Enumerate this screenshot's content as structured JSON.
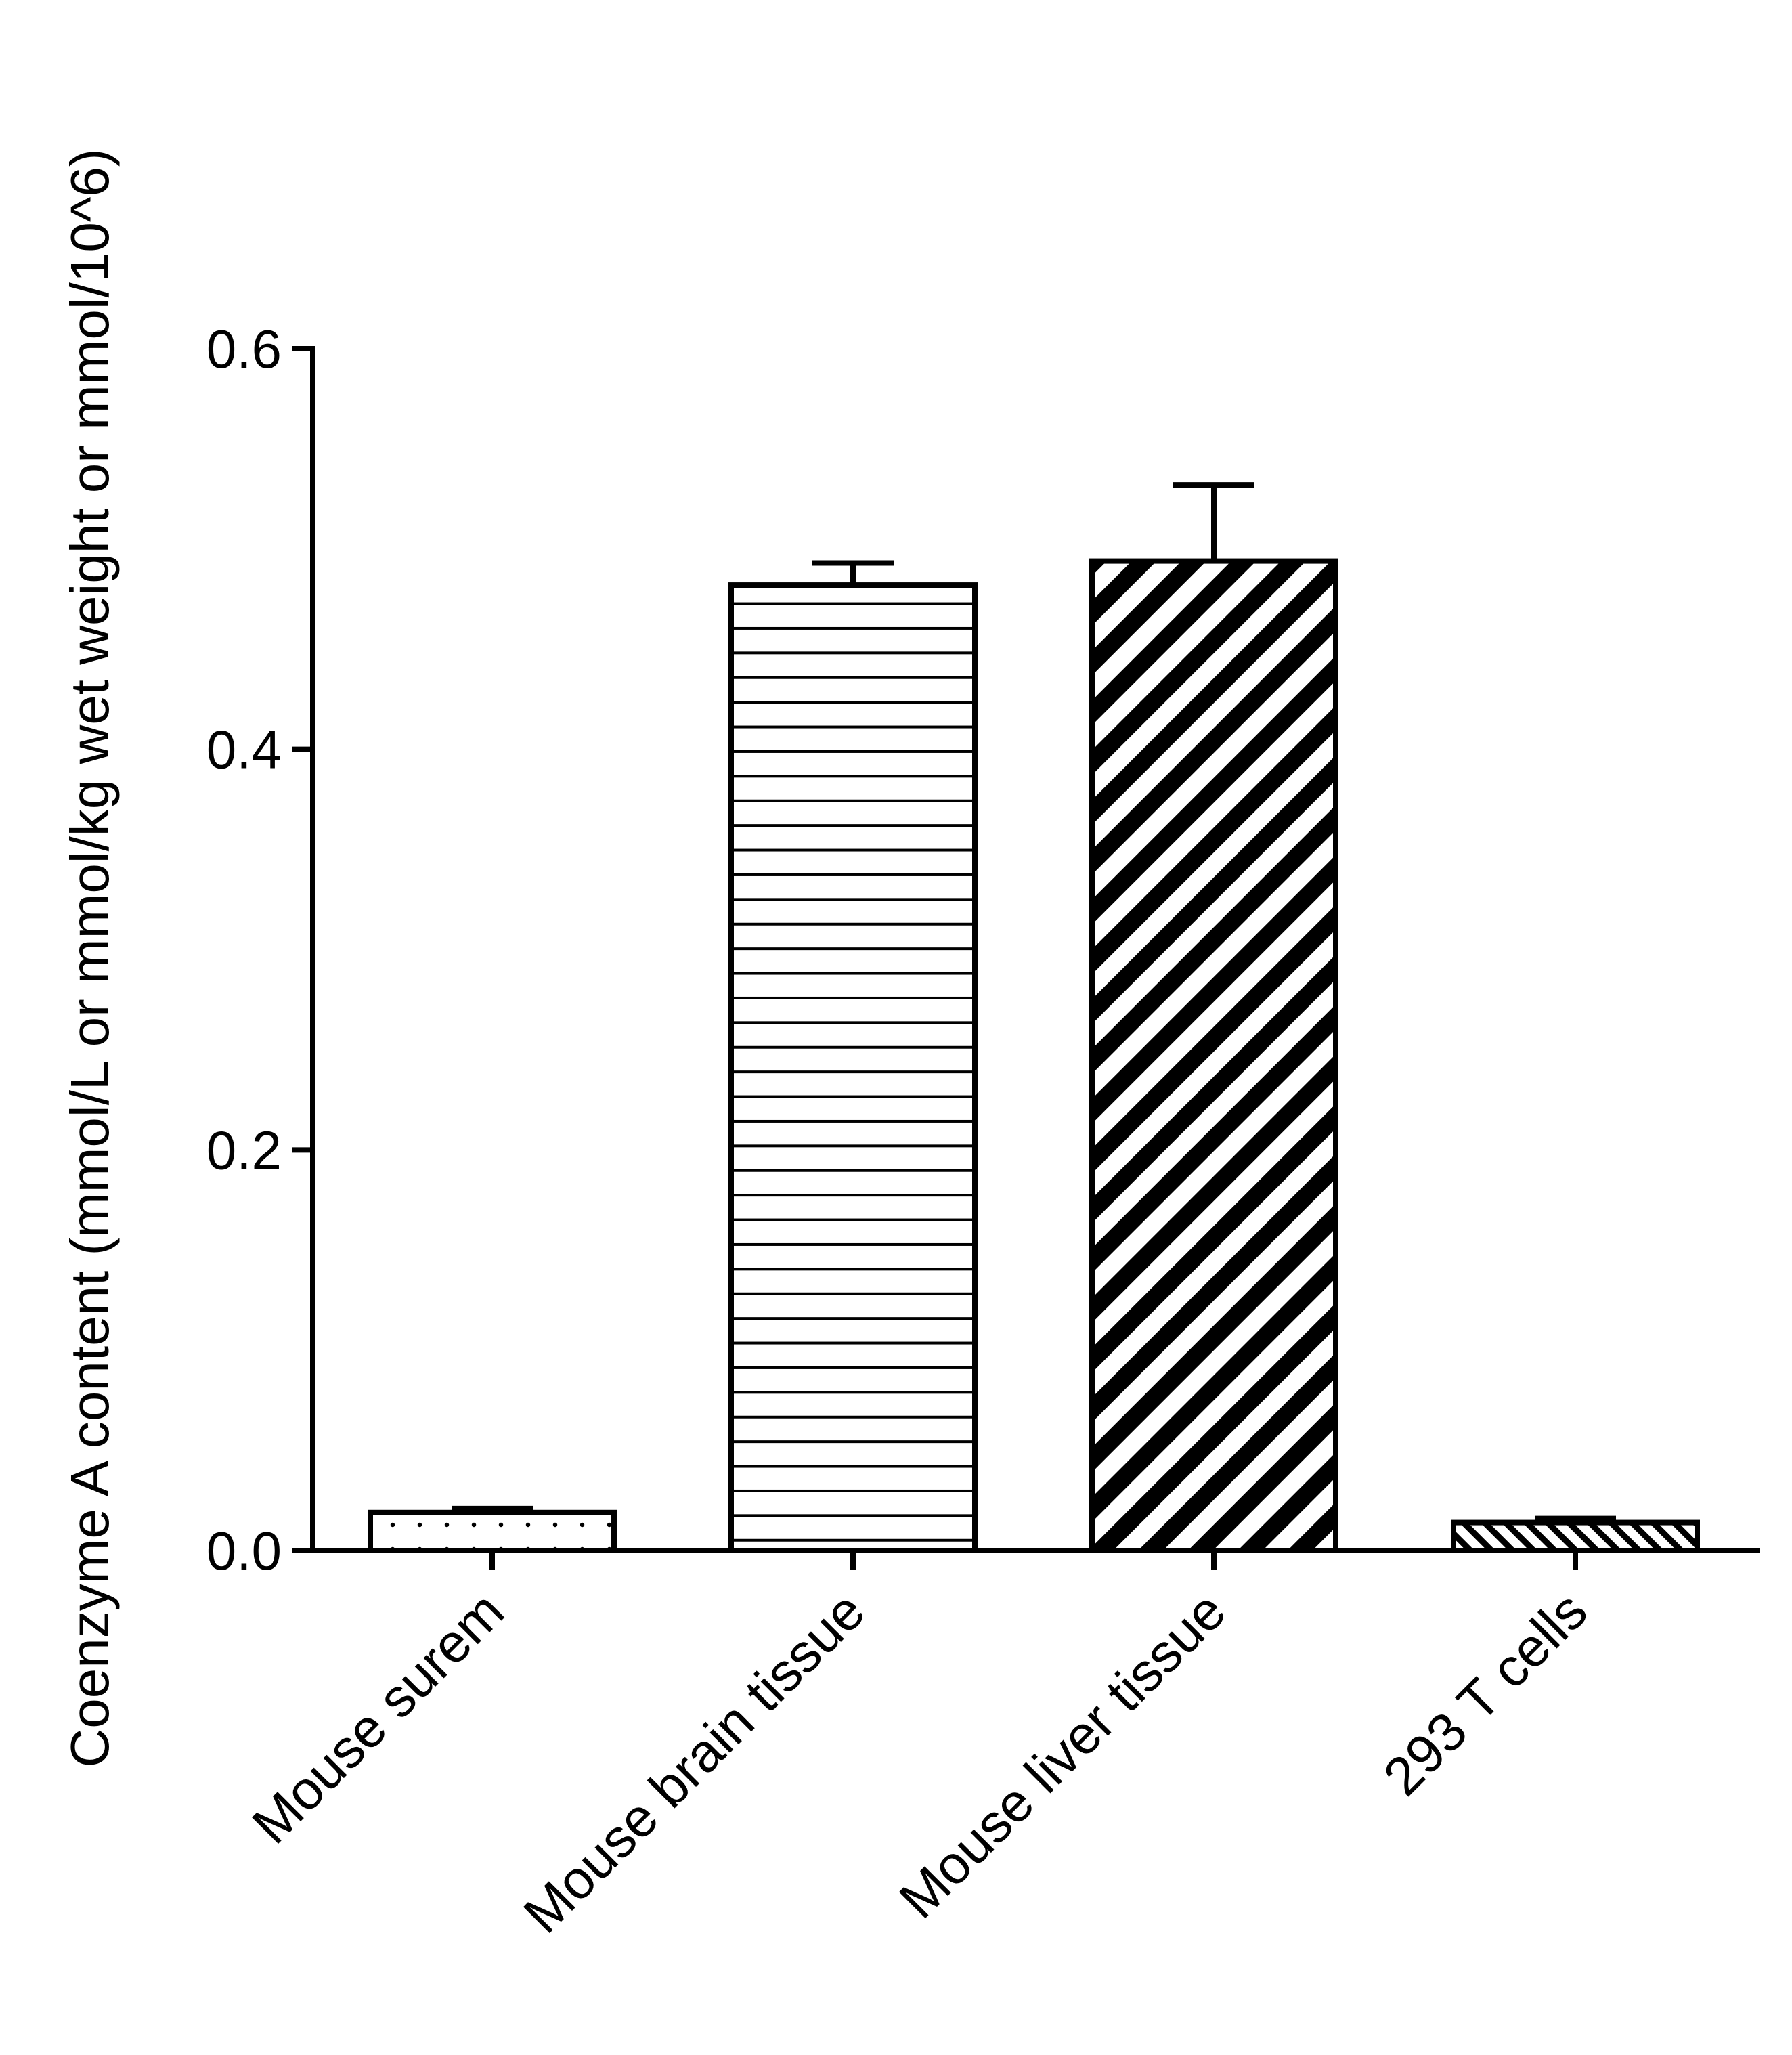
{
  "chart_data": {
    "type": "bar",
    "title": "",
    "ylabel": "Coenzyme A content (mmol/L or mmol/kg wet weight or mmol/10^6)",
    "xlabel": "",
    "categories": [
      "Mouse surem",
      "Mouse brain tissue",
      "Mouse liver tissue",
      "293 T cells"
    ],
    "values": [
      0.019,
      0.482,
      0.494,
      0.014
    ],
    "errors": [
      0.002,
      0.011,
      0.038,
      0.002
    ],
    "patterns": [
      "dots",
      "horizontal-lines",
      "diagonal-stripes-wide",
      "diagonal-stripes-fine"
    ],
    "ylim": [
      0,
      0.6
    ],
    "yticks": [
      "0.0",
      "0.2",
      "0.4",
      "0.6"
    ],
    "ytick_values": [
      0,
      0.2,
      0.4,
      0.6
    ],
    "grid": false,
    "legend": "none",
    "colors": {
      "stroke": "#000000",
      "fill": "#ffffff"
    }
  }
}
